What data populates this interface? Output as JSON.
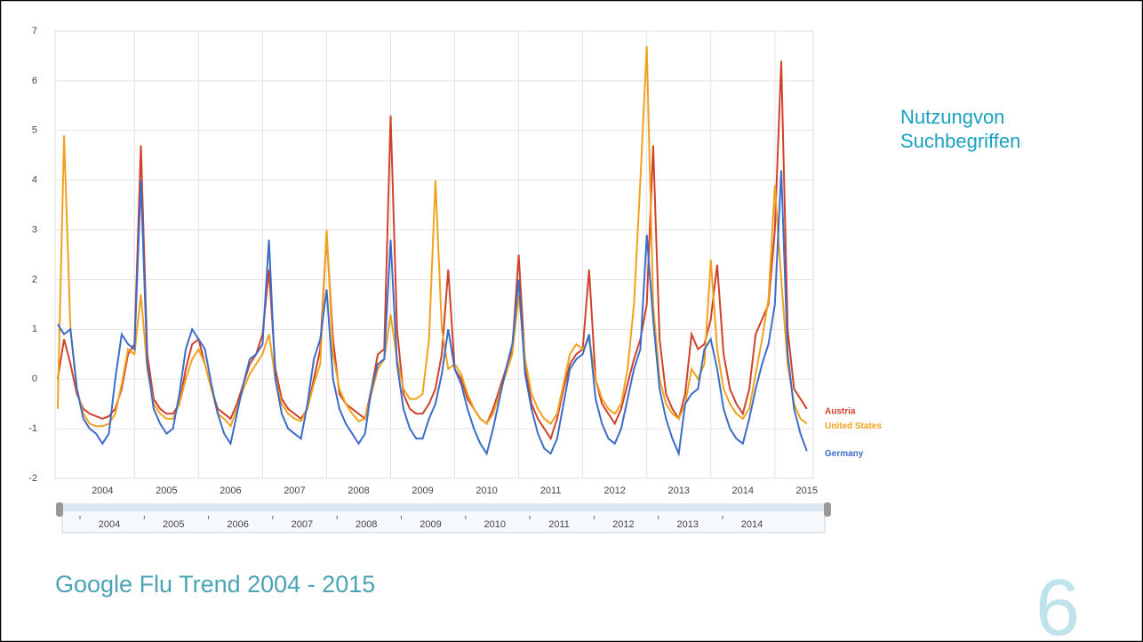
{
  "chart_data": {
    "type": "line",
    "title": "Google Flu Trend 2004 - 2015",
    "annotation": [
      "Nutzungvon",
      "Suchbegriffen"
    ],
    "page_number": "6",
    "x": [
      2003.8,
      2003.9,
      2004.0,
      2004.1,
      2004.2,
      2004.3,
      2004.4,
      2004.5,
      2004.6,
      2004.7,
      2004.8,
      2004.9,
      2005.0,
      2005.1,
      2005.2,
      2005.3,
      2005.4,
      2005.5,
      2005.6,
      2005.7,
      2005.8,
      2005.9,
      2006.0,
      2006.1,
      2006.2,
      2006.3,
      2006.4,
      2006.5,
      2006.6,
      2006.7,
      2006.8,
      2006.9,
      2007.0,
      2007.1,
      2007.2,
      2007.3,
      2007.4,
      2007.5,
      2007.6,
      2007.7,
      2007.8,
      2007.9,
      2008.0,
      2008.1,
      2008.2,
      2008.3,
      2008.4,
      2008.5,
      2008.6,
      2008.7,
      2008.8,
      2008.9,
      2009.0,
      2009.1,
      2009.2,
      2009.3,
      2009.4,
      2009.5,
      2009.6,
      2009.7,
      2009.8,
      2009.9,
      2010.0,
      2010.1,
      2010.2,
      2010.3,
      2010.4,
      2010.5,
      2010.6,
      2010.7,
      2010.8,
      2010.9,
      2011.0,
      2011.1,
      2011.2,
      2011.3,
      2011.4,
      2011.5,
      2011.6,
      2011.7,
      2011.8,
      2011.9,
      2012.0,
      2012.1,
      2012.2,
      2012.3,
      2012.4,
      2012.5,
      2012.6,
      2012.7,
      2012.8,
      2012.9,
      2013.0,
      2013.1,
      2013.2,
      2013.3,
      2013.4,
      2013.5,
      2013.6,
      2013.7,
      2013.8,
      2013.9,
      2014.0,
      2014.1,
      2014.2,
      2014.3,
      2014.4,
      2014.5,
      2014.6,
      2014.7,
      2014.8,
      2014.9,
      2015.0,
      2015.1,
      2015.2,
      2015.3,
      2015.4,
      2015.5
    ],
    "series": [
      {
        "name": "Austria",
        "color": "#d0422a",
        "values": [
          0.0,
          0.8,
          0.3,
          -0.3,
          -0.6,
          -0.7,
          -0.75,
          -0.8,
          -0.75,
          -0.6,
          -0.2,
          0.5,
          0.7,
          4.7,
          0.5,
          -0.4,
          -0.6,
          -0.7,
          -0.7,
          -0.5,
          0.2,
          0.7,
          0.8,
          0.3,
          -0.2,
          -0.6,
          -0.7,
          -0.8,
          -0.5,
          -0.1,
          0.3,
          0.5,
          0.9,
          2.2,
          0.2,
          -0.4,
          -0.6,
          -0.7,
          -0.8,
          -0.6,
          0.0,
          0.6,
          2.9,
          0.8,
          -0.3,
          -0.5,
          -0.6,
          -0.7,
          -0.8,
          -0.2,
          0.5,
          0.6,
          5.3,
          1.0,
          -0.3,
          -0.6,
          -0.7,
          -0.7,
          -0.5,
          -0.2,
          0.5,
          2.2,
          0.2,
          0.0,
          -0.4,
          -0.6,
          -0.8,
          -0.9,
          -0.6,
          -0.2,
          0.2,
          0.6,
          2.5,
          0.3,
          -0.5,
          -0.8,
          -1.0,
          -1.2,
          -0.8,
          -0.2,
          0.3,
          0.5,
          0.6,
          2.2,
          0.0,
          -0.5,
          -0.7,
          -0.9,
          -0.6,
          -0.1,
          0.4,
          0.8,
          1.5,
          4.7,
          0.8,
          -0.3,
          -0.6,
          -0.8,
          -0.3,
          0.9,
          0.6,
          0.7,
          1.2,
          2.3,
          0.5,
          -0.2,
          -0.5,
          -0.7,
          -0.2,
          0.9,
          1.2,
          1.5,
          3.0,
          6.4,
          1.0,
          -0.2,
          -0.4,
          -0.6
        ]
      },
      {
        "name": "United States",
        "color": "#f0a21e",
        "values": [
          -0.6,
          4.9,
          1.0,
          -0.2,
          -0.7,
          -0.9,
          -0.95,
          -0.95,
          -0.9,
          -0.7,
          -0.1,
          0.6,
          0.5,
          1.7,
          0.2,
          -0.5,
          -0.7,
          -0.8,
          -0.8,
          -0.5,
          0.0,
          0.4,
          0.6,
          0.3,
          -0.2,
          -0.7,
          -0.8,
          -0.95,
          -0.6,
          -0.2,
          0.1,
          0.3,
          0.5,
          0.9,
          0.0,
          -0.5,
          -0.7,
          -0.8,
          -0.85,
          -0.6,
          -0.1,
          0.3,
          3.0,
          0.5,
          -0.2,
          -0.5,
          -0.7,
          -0.85,
          -0.8,
          -0.3,
          0.2,
          0.4,
          1.3,
          0.4,
          -0.2,
          -0.4,
          -0.4,
          -0.3,
          0.8,
          4.0,
          1.0,
          0.2,
          0.3,
          0.1,
          -0.3,
          -0.6,
          -0.8,
          -0.9,
          -0.7,
          -0.3,
          0.1,
          0.5,
          1.7,
          0.4,
          -0.3,
          -0.6,
          -0.8,
          -0.9,
          -0.7,
          -0.1,
          0.5,
          0.7,
          0.6,
          0.8,
          0.0,
          -0.4,
          -0.6,
          -0.7,
          -0.5,
          0.2,
          1.5,
          4.0,
          6.7,
          1.5,
          0.0,
          -0.5,
          -0.7,
          -0.8,
          -0.5,
          0.2,
          0.0,
          0.3,
          2.4,
          0.6,
          -0.2,
          -0.5,
          -0.7,
          -0.8,
          -0.6,
          0.1,
          0.8,
          1.6,
          3.9,
          2.0,
          0.3,
          -0.5,
          -0.8,
          -0.9
        ]
      },
      {
        "name": "Germany",
        "color": "#3d6cc8",
        "values": [
          1.1,
          0.9,
          1.0,
          -0.2,
          -0.8,
          -1.0,
          -1.1,
          -1.3,
          -1.1,
          0.0,
          0.9,
          0.7,
          0.6,
          4.0,
          0.3,
          -0.6,
          -0.9,
          -1.1,
          -1.0,
          -0.3,
          0.6,
          1.0,
          0.8,
          0.6,
          -0.1,
          -0.7,
          -1.1,
          -1.3,
          -0.7,
          -0.1,
          0.4,
          0.5,
          0.7,
          2.8,
          0.0,
          -0.7,
          -1.0,
          -1.1,
          -1.2,
          -0.5,
          0.4,
          0.8,
          1.8,
          0.0,
          -0.6,
          -0.9,
          -1.1,
          -1.3,
          -1.1,
          -0.2,
          0.3,
          0.4,
          2.8,
          0.3,
          -0.6,
          -1.0,
          -1.2,
          -1.2,
          -0.8,
          -0.5,
          0.1,
          1.0,
          0.2,
          -0.1,
          -0.6,
          -1.0,
          -1.3,
          -1.5,
          -1.0,
          -0.4,
          0.2,
          0.7,
          2.0,
          0.1,
          -0.6,
          -1.1,
          -1.4,
          -1.5,
          -1.2,
          -0.5,
          0.2,
          0.4,
          0.5,
          0.9,
          -0.4,
          -0.9,
          -1.2,
          -1.3,
          -1.0,
          -0.4,
          0.2,
          0.6,
          2.9,
          1.2,
          -0.2,
          -0.8,
          -1.2,
          -1.5,
          -0.5,
          -0.3,
          -0.2,
          0.6,
          0.8,
          0.2,
          -0.6,
          -1.0,
          -1.2,
          -1.3,
          -0.8,
          -0.2,
          0.3,
          0.7,
          1.5,
          4.2,
          0.5,
          -0.6,
          -1.1,
          -1.45
        ]
      }
    ],
    "xlim": [
      2003.76,
      2015.6
    ],
    "xticks": [
      {
        "value": 2004.5,
        "label": "2004"
      },
      {
        "value": 2005.5,
        "label": "2005"
      },
      {
        "value": 2006.5,
        "label": "2006"
      },
      {
        "value": 2007.5,
        "label": "2007"
      },
      {
        "value": 2008.5,
        "label": "2008"
      },
      {
        "value": 2009.5,
        "label": "2009"
      },
      {
        "value": 2010.5,
        "label": "2010"
      },
      {
        "value": 2011.5,
        "label": "2011"
      },
      {
        "value": 2012.5,
        "label": "2012"
      },
      {
        "value": 2013.5,
        "label": "2013"
      },
      {
        "value": 2014.5,
        "label": "2014"
      },
      {
        "value": 2015.5,
        "label": "2015"
      }
    ],
    "xgrid": [
      2005,
      2006,
      2007,
      2008,
      2009,
      2010,
      2011,
      2012,
      2013,
      2014,
      2015
    ],
    "ylim": [
      -2,
      7
    ],
    "yticks": [
      -2,
      -1,
      0,
      1,
      2,
      3,
      4,
      5,
      6,
      7
    ],
    "grid": true,
    "navigator": {
      "labels": [
        "2004",
        "2005",
        "2006",
        "2007",
        "2008",
        "2009",
        "2010",
        "2011",
        "2012",
        "2013",
        "2014"
      ]
    }
  }
}
